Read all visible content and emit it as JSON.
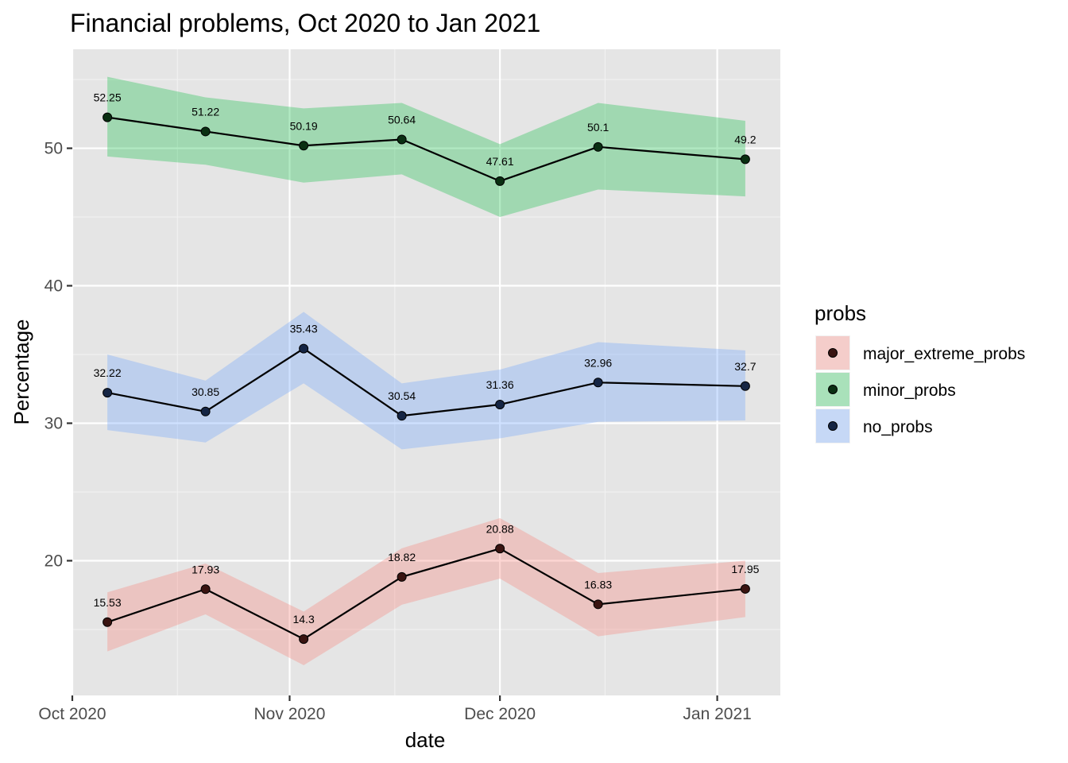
{
  "chart_data": {
    "type": "line",
    "title": "Financial problems, Oct 2020 to Jan 2021",
    "xlabel": "date",
    "ylabel": "Percentage",
    "x_dates": [
      "2020-10-06",
      "2020-10-20",
      "2020-11-03",
      "2020-11-17",
      "2020-12-01",
      "2020-12-15",
      "2021-01-05"
    ],
    "x_ticks": [
      {
        "date": "2020-10-01",
        "label": "Oct 2020"
      },
      {
        "date": "2020-11-01",
        "label": "Nov 2020"
      },
      {
        "date": "2020-12-01",
        "label": "Dec 2020"
      },
      {
        "date": "2021-01-01",
        "label": "Jan 2021"
      }
    ],
    "x_minor_ticks": [
      "2020-10-16",
      "2020-11-16",
      "2020-12-16"
    ],
    "xlim": [
      "2020-10-01",
      "2021-01-10"
    ],
    "ylim": [
      10.2,
      57.2
    ],
    "y_ticks": [
      20,
      30,
      40,
      50
    ],
    "y_minor_ticks": [
      15,
      25,
      35,
      45,
      55
    ],
    "grid": true,
    "panel_background": "#e5e5e5",
    "legend": {
      "title": "probs",
      "position": "right",
      "entries": [
        "major_extreme_probs",
        "minor_probs",
        "no_probs"
      ]
    },
    "series": [
      {
        "name": "major_extreme_probs",
        "color": "#f8766d",
        "point_color": "#3a1411",
        "values": [
          15.53,
          17.93,
          14.3,
          18.82,
          20.88,
          16.83,
          17.95
        ],
        "lower": [
          13.4,
          16.1,
          12.4,
          16.8,
          18.7,
          14.5,
          15.9
        ],
        "upper": [
          17.7,
          19.8,
          16.3,
          20.9,
          23.1,
          19.1,
          20.0
        ],
        "labels": [
          "15.53",
          "17.93",
          "14.3",
          "18.82",
          "20.88",
          "16.83",
          "17.95"
        ]
      },
      {
        "name": "minor_probs",
        "color": "#00ba38",
        "point_color": "#0a2f12",
        "values": [
          52.25,
          51.22,
          50.19,
          50.64,
          47.61,
          50.1,
          49.2
        ],
        "lower": [
          49.4,
          48.8,
          47.5,
          48.1,
          45.0,
          47.0,
          46.5
        ],
        "upper": [
          55.2,
          53.7,
          52.9,
          53.3,
          50.3,
          53.3,
          52.0
        ],
        "labels": [
          "52.25",
          "51.22",
          "50.19",
          "50.64",
          "47.61",
          "50.1",
          "49.2"
        ]
      },
      {
        "name": "no_probs",
        "color": "#619cff",
        "point_color": "#152544",
        "values": [
          32.22,
          30.85,
          35.43,
          30.54,
          31.36,
          32.96,
          32.7
        ],
        "lower": [
          29.5,
          28.6,
          32.9,
          28.1,
          28.9,
          30.1,
          30.2
        ],
        "upper": [
          35.0,
          33.1,
          38.1,
          32.9,
          33.9,
          35.9,
          35.3
        ],
        "labels": [
          "32.22",
          "30.85",
          "35.43",
          "30.54",
          "31.36",
          "32.96",
          "32.7"
        ]
      }
    ]
  }
}
